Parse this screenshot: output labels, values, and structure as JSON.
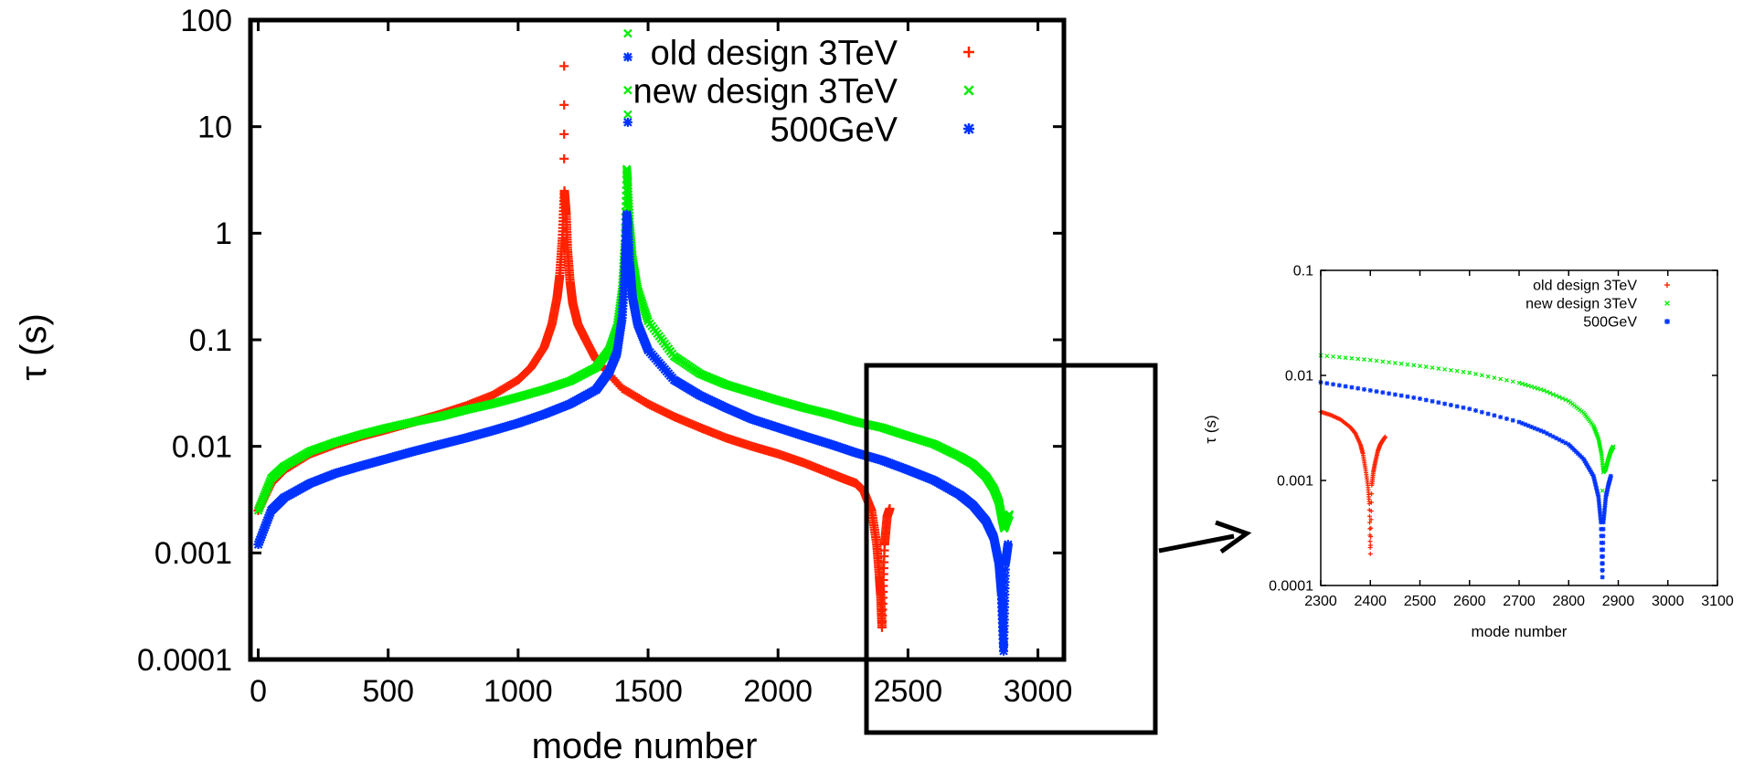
{
  "chart_data": [
    {
      "type": "scatter",
      "xlabel": "mode number",
      "ylabel": "τ (s)",
      "xscale": "linear",
      "yscale": "log",
      "xlim": [
        -30,
        3100
      ],
      "ylim": [
        0.0001,
        100
      ],
      "x_ticks": [
        0,
        500,
        1000,
        1500,
        2000,
        2500,
        3000
      ],
      "x_tick_labels": [
        "0",
        "500",
        "1000",
        "1500",
        "2000",
        "2500",
        "3000"
      ],
      "y_ticks": [
        0.0001,
        0.001,
        0.01,
        0.1,
        1,
        10,
        100
      ],
      "y_tick_labels": [
        "0.0001",
        "0.001",
        "0.01",
        "0.1",
        "1",
        "10",
        "100"
      ],
      "legend_position": "top-right",
      "series": [
        {
          "name": "old design 3TeV",
          "marker": "+",
          "color": "#ff2200",
          "x": [
            0,
            50,
            100,
            200,
            300,
            400,
            500,
            600,
            700,
            800,
            900,
            1000,
            1050,
            1100,
            1130,
            1150,
            1160,
            1170,
            1178,
            1185,
            1190,
            1200,
            1210,
            1230,
            1260,
            1300,
            1400,
            1500,
            1600,
            1700,
            1800,
            1900,
            2000,
            2100,
            2200,
            2250,
            2300,
            2330,
            2360,
            2380,
            2390,
            2395,
            2400,
            2410,
            2420,
            2430
          ],
          "y": [
            0.0025,
            0.0045,
            0.006,
            0.0085,
            0.0105,
            0.0125,
            0.0145,
            0.017,
            0.02,
            0.024,
            0.03,
            0.042,
            0.055,
            0.085,
            0.14,
            0.25,
            0.4,
            0.9,
            2.5,
            1.5,
            0.7,
            0.35,
            0.22,
            0.14,
            0.1,
            0.065,
            0.035,
            0.025,
            0.019,
            0.015,
            0.012,
            0.01,
            0.0085,
            0.007,
            0.0056,
            0.005,
            0.0045,
            0.0038,
            0.0025,
            0.0012,
            0.0006,
            0.0004,
            0.0002,
            0.0012,
            0.0022,
            0.0026
          ],
          "outliers": {
            "x": [
              1177,
              1177,
              1177,
              1177
            ],
            "y": [
              37,
              16,
              8.5,
              5
            ]
          }
        },
        {
          "name": "new design 3TeV",
          "marker": "x",
          "color": "#00ee00",
          "x": [
            0,
            50,
            100,
            200,
            300,
            400,
            500,
            600,
            700,
            800,
            900,
            1000,
            1100,
            1200,
            1300,
            1350,
            1380,
            1400,
            1410,
            1418,
            1422,
            1430,
            1440,
            1460,
            1500,
            1600,
            1700,
            1800,
            1900,
            2000,
            2100,
            2200,
            2300,
            2400,
            2500,
            2600,
            2700,
            2750,
            2800,
            2830,
            2850,
            2860,
            2870,
            2880,
            2890
          ],
          "y": [
            0.0025,
            0.005,
            0.0065,
            0.009,
            0.011,
            0.013,
            0.015,
            0.017,
            0.019,
            0.022,
            0.025,
            0.029,
            0.034,
            0.041,
            0.055,
            0.08,
            0.13,
            0.3,
            0.8,
            4,
            3,
            1.2,
            0.6,
            0.3,
            0.15,
            0.07,
            0.048,
            0.038,
            0.032,
            0.027,
            0.023,
            0.02,
            0.017,
            0.015,
            0.0125,
            0.0105,
            0.008,
            0.0068,
            0.0052,
            0.004,
            0.003,
            0.0022,
            0.0017,
            0.002,
            0.0023
          ],
          "outliers": {
            "x": [
              1422,
              1422,
              1422
            ],
            "y": [
              75,
              22,
              13
            ]
          }
        },
        {
          "name": "500GeV",
          "marker": "*",
          "color": "#0033ff",
          "x": [
            0,
            50,
            100,
            200,
            300,
            400,
            500,
            600,
            700,
            800,
            900,
            1000,
            1100,
            1200,
            1300,
            1350,
            1380,
            1400,
            1410,
            1418,
            1422,
            1430,
            1440,
            1460,
            1500,
            1600,
            1700,
            1800,
            1900,
            2000,
            2100,
            2200,
            2300,
            2400,
            2500,
            2600,
            2700,
            2750,
            2800,
            2830,
            2850,
            2860,
            2868,
            2875,
            2885
          ],
          "y": [
            0.0012,
            0.0025,
            0.0033,
            0.0045,
            0.0056,
            0.0066,
            0.0077,
            0.009,
            0.0104,
            0.012,
            0.014,
            0.0165,
            0.02,
            0.025,
            0.034,
            0.05,
            0.075,
            0.16,
            0.4,
            1.5,
            1.2,
            0.5,
            0.25,
            0.14,
            0.08,
            0.042,
            0.03,
            0.023,
            0.018,
            0.015,
            0.0125,
            0.0105,
            0.0087,
            0.0074,
            0.006,
            0.0048,
            0.0035,
            0.0028,
            0.002,
            0.0014,
            0.0008,
            0.0004,
            0.00012,
            0.0008,
            0.0012
          ],
          "outliers": {
            "x": [
              1422,
              1422
            ],
            "y": [
              45,
              11
            ]
          }
        }
      ]
    },
    {
      "type": "scatter",
      "xlabel": "mode number",
      "ylabel": "τ (s)",
      "xscale": "linear",
      "yscale": "log",
      "xlim": [
        2300,
        3100
      ],
      "ylim": [
        0.0001,
        0.1
      ],
      "x_ticks": [
        2300,
        2400,
        2500,
        2600,
        2700,
        2800,
        2900,
        3000,
        3100
      ],
      "x_tick_labels": [
        "2300",
        "2400",
        "2500",
        "2600",
        "2700",
        "2800",
        "2900",
        "3000",
        "3100"
      ],
      "y_ticks": [
        0.0001,
        0.001,
        0.01,
        0.1
      ],
      "y_tick_labels": [
        "0.0001",
        "0.001",
        "0.01",
        "0.1"
      ],
      "legend_position": "top-right",
      "series": [
        {
          "name": "old design 3TeV",
          "marker": "+",
          "color": "#ff2200",
          "x": [
            2300,
            2320,
            2340,
            2360,
            2370,
            2380,
            2385,
            2390,
            2395,
            2398,
            2400,
            2403,
            2406,
            2410,
            2415,
            2420,
            2425,
            2430
          ],
          "y": [
            0.0045,
            0.0042,
            0.0038,
            0.0032,
            0.0028,
            0.0022,
            0.0018,
            0.0013,
            0.0009,
            0.0006,
            0.0002,
            0.0009,
            0.0012,
            0.0015,
            0.0019,
            0.0022,
            0.0024,
            0.0026
          ]
        },
        {
          "name": "new design 3TeV",
          "marker": "x",
          "color": "#00ee00",
          "x": [
            2300,
            2400,
            2500,
            2600,
            2700,
            2750,
            2800,
            2830,
            2850,
            2860,
            2866,
            2870,
            2875,
            2880,
            2885,
            2890
          ],
          "y": [
            0.0155,
            0.014,
            0.0123,
            0.0106,
            0.0085,
            0.0072,
            0.0057,
            0.0044,
            0.0033,
            0.0025,
            0.0018,
            0.0012,
            0.0013,
            0.0016,
            0.0019,
            0.0021
          ],
          "outliers": {
            "x": [
              2868
            ],
            "y": [
              0.0008
            ]
          }
        },
        {
          "name": "500GeV",
          "marker": "*",
          "color": "#0033ff",
          "x": [
            2300,
            2400,
            2500,
            2600,
            2700,
            2750,
            2800,
            2830,
            2850,
            2860,
            2865,
            2868,
            2870,
            2875,
            2880,
            2885
          ],
          "y": [
            0.0086,
            0.0072,
            0.006,
            0.0048,
            0.0036,
            0.0029,
            0.0022,
            0.0016,
            0.0011,
            0.0007,
            0.0004,
            0.00012,
            0.0004,
            0.0007,
            0.0009,
            0.0011
          ]
        }
      ]
    }
  ]
}
